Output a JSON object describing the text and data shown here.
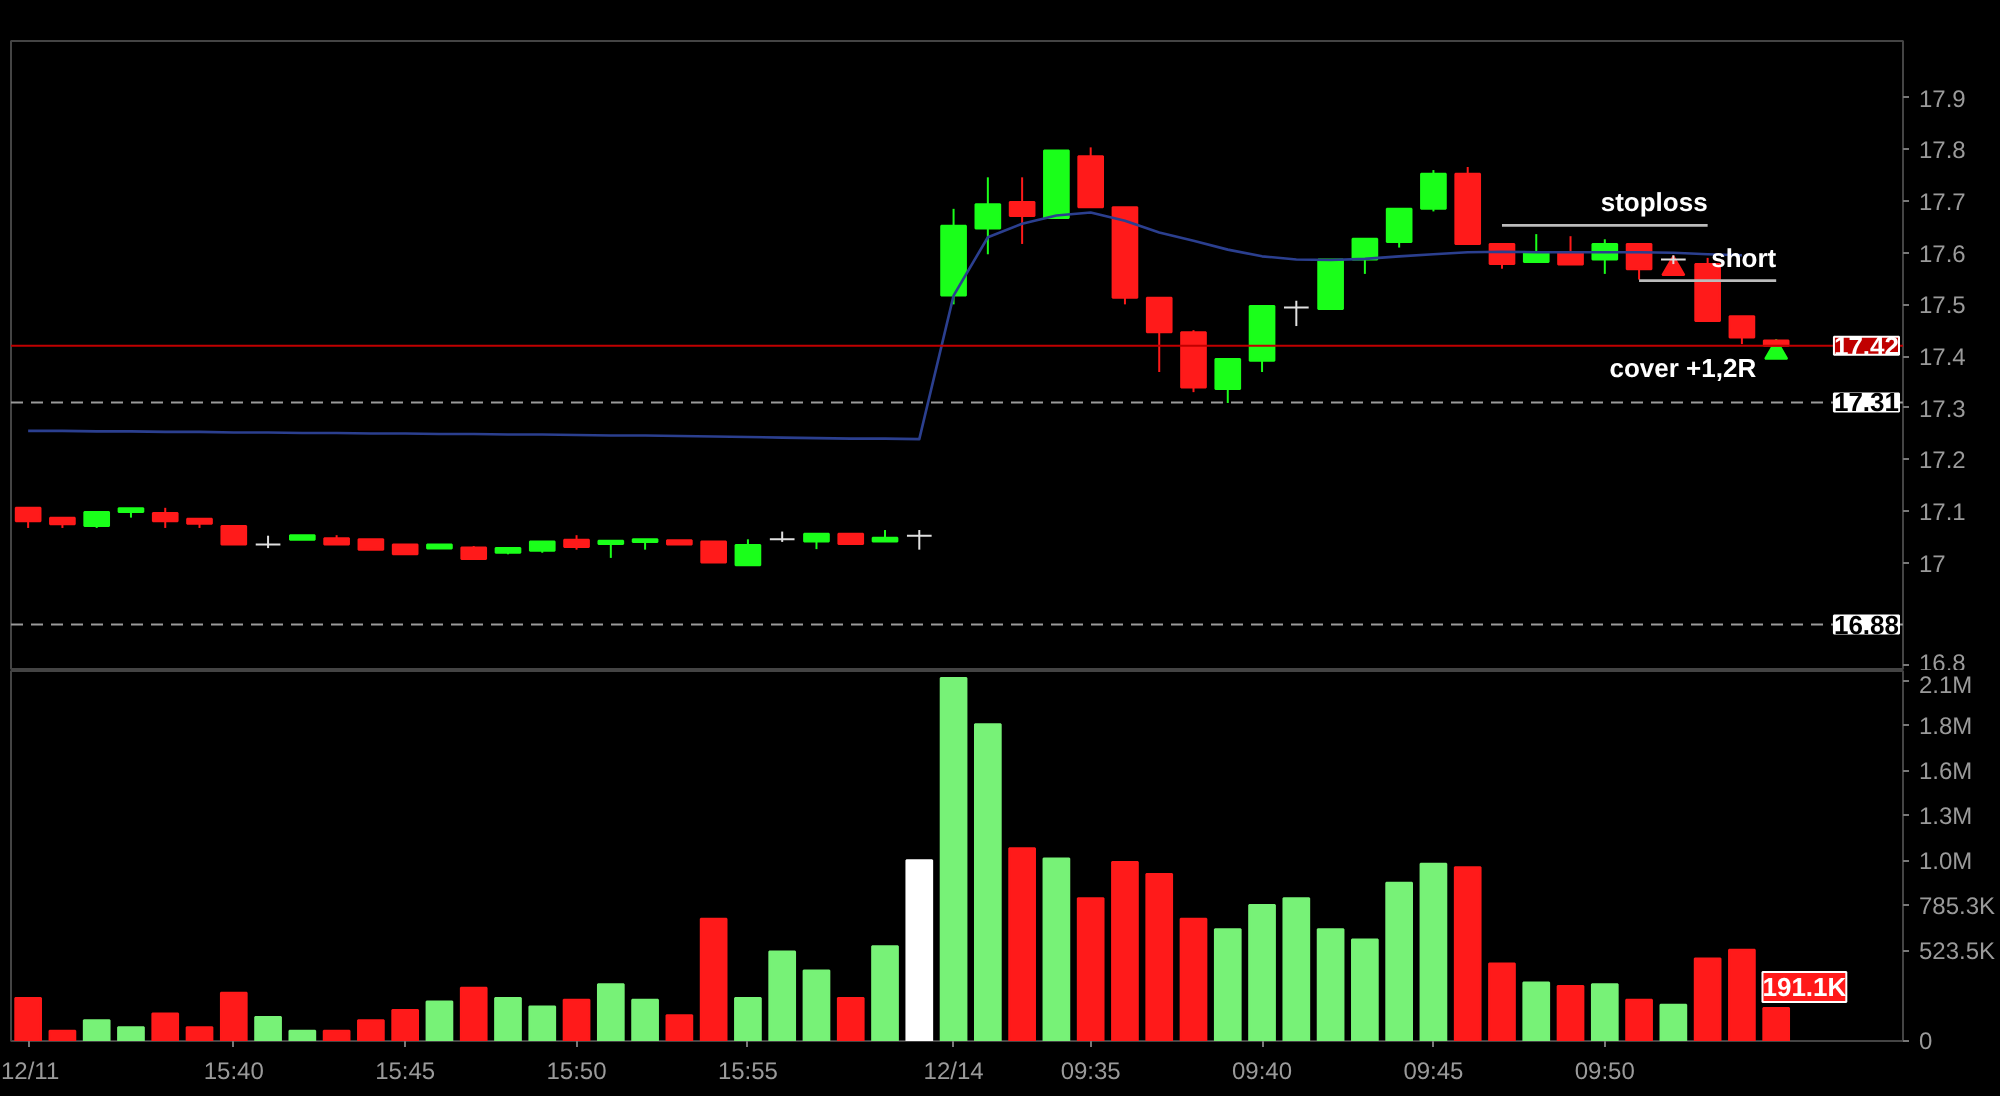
{
  "chart_data": [
    {
      "type": "candlestick",
      "ohlc": [
        [
          17.106,
          17.106,
          17.067,
          17.08
        ],
        [
          17.087,
          17.087,
          17.067,
          17.074
        ],
        [
          17.071,
          17.098,
          17.067,
          17.098
        ],
        [
          17.098,
          17.105,
          17.087,
          17.105
        ],
        [
          17.096,
          17.106,
          17.067,
          17.08
        ],
        [
          17.085,
          17.085,
          17.067,
          17.075
        ],
        [
          17.071,
          17.071,
          17.035,
          17.035
        ],
        [
          17.035,
          17.052,
          17.028,
          17.035
        ],
        [
          17.044,
          17.053,
          17.044,
          17.053
        ],
        [
          17.047,
          17.053,
          17.035,
          17.035
        ],
        [
          17.045,
          17.045,
          17.025,
          17.025
        ],
        [
          17.035,
          17.035,
          17.016,
          17.016
        ],
        [
          17.027,
          17.035,
          17.027,
          17.035
        ],
        [
          17.029,
          17.032,
          17.007,
          17.007
        ],
        [
          17.019,
          17.028,
          17.016,
          17.028
        ],
        [
          17.023,
          17.041,
          17.019,
          17.041
        ],
        [
          17.044,
          17.053,
          17.025,
          17.03
        ],
        [
          17.036,
          17.042,
          17.009,
          17.042
        ],
        [
          17.04,
          17.045,
          17.025,
          17.045
        ],
        [
          17.043,
          17.043,
          17.035,
          17.035
        ],
        [
          17.041,
          17.041,
          17.0,
          17.0
        ],
        [
          16.995,
          17.045,
          16.995,
          17.034
        ],
        [
          17.045,
          17.06,
          17.04,
          17.045
        ],
        [
          17.041,
          17.056,
          17.026,
          17.056
        ],
        [
          17.056,
          17.056,
          17.036,
          17.036
        ],
        [
          17.041,
          17.063,
          17.041,
          17.048
        ],
        [
          17.052,
          17.063,
          17.025,
          17.052
        ],
        [
          17.517,
          17.685,
          17.5,
          17.652
        ],
        [
          17.647,
          17.746,
          17.597,
          17.694
        ],
        [
          17.698,
          17.746,
          17.617,
          17.671
        ],
        [
          17.667,
          17.798,
          17.667,
          17.798
        ],
        [
          17.787,
          17.804,
          17.688,
          17.688
        ],
        [
          17.688,
          17.688,
          17.5,
          17.513
        ],
        [
          17.513,
          17.513,
          17.369,
          17.446
        ],
        [
          17.446,
          17.45,
          17.33,
          17.339
        ],
        [
          17.336,
          17.394,
          17.309,
          17.394
        ],
        [
          17.391,
          17.497,
          17.369,
          17.497
        ],
        [
          17.494,
          17.507,
          17.458,
          17.494
        ],
        [
          17.491,
          17.587,
          17.491,
          17.587
        ],
        [
          17.587,
          17.627,
          17.559,
          17.627
        ],
        [
          17.621,
          17.685,
          17.61,
          17.685
        ],
        [
          17.685,
          17.76,
          17.68,
          17.753
        ],
        [
          17.753,
          17.766,
          17.617,
          17.617
        ],
        [
          17.617,
          17.617,
          17.569,
          17.578
        ],
        [
          17.582,
          17.636,
          17.582,
          17.6
        ],
        [
          17.6,
          17.632,
          17.577,
          17.577
        ],
        [
          17.587,
          17.626,
          17.559,
          17.617
        ],
        [
          17.617,
          17.617,
          17.548,
          17.568
        ],
        [
          17.587,
          17.595,
          17.578,
          17.587
        ],
        [
          17.578,
          17.59,
          17.468,
          17.468
        ],
        [
          17.477,
          17.477,
          17.423,
          17.436
        ],
        [
          17.43,
          17.43,
          17.42,
          17.42
        ]
      ],
      "colors": [
        "#ff1a1a",
        "#ff1a1a",
        "#1aff1a",
        "#1aff1a",
        "#ff1a1a",
        "#ff1a1a",
        "#ff1a1a",
        "#e0e0e0",
        "#1aff1a",
        "#ff1a1a",
        "#ff1a1a",
        "#ff1a1a",
        "#1aff1a",
        "#ff1a1a",
        "#1aff1a",
        "#1aff1a",
        "#ff1a1a",
        "#1aff1a",
        "#1aff1a",
        "#ff1a1a",
        "#ff1a1a",
        "#1aff1a",
        "#e0e0e0",
        "#1aff1a",
        "#ff1a1a",
        "#1aff1a",
        "#e0e0e0",
        "#1aff1a",
        "#1aff1a",
        "#ff1a1a",
        "#1aff1a",
        "#ff1a1a",
        "#ff1a1a",
        "#ff1a1a",
        "#ff1a1a",
        "#1aff1a",
        "#1aff1a",
        "#e0e0e0",
        "#1aff1a",
        "#1aff1a",
        "#1aff1a",
        "#1aff1a",
        "#ff1a1a",
        "#ff1a1a",
        "#1aff1a",
        "#ff1a1a",
        "#1aff1a",
        "#ff1a1a",
        "#e0e0e0",
        "#ff1a1a",
        "#ff1a1a",
        "#ff1a1a"
      ],
      "series": [
        {
          "type": "line",
          "color": "#2b3f8f",
          "values": [
            17.255,
            17.255,
            17.254,
            17.254,
            17.253,
            17.253,
            17.252,
            17.252,
            17.251,
            17.251,
            17.25,
            17.25,
            17.249,
            17.249,
            17.248,
            17.248,
            17.247,
            17.246,
            17.246,
            17.245,
            17.244,
            17.243,
            17.242,
            17.241,
            17.24,
            17.24,
            17.239,
            17.517,
            17.63,
            17.656,
            17.672,
            17.678,
            17.662,
            17.639,
            17.623,
            17.606,
            17.593,
            17.587,
            17.586,
            17.588,
            17.593,
            17.597,
            17.601,
            17.602,
            17.601,
            17.601,
            17.601,
            17.601,
            17.6,
            17.597,
            17.595,
            null
          ]
        },
        {
          "type": "line",
          "name": "stoploss",
          "color": "#bbbbbb",
          "values": [
            null,
            null,
            null,
            null,
            null,
            null,
            null,
            null,
            null,
            null,
            null,
            null,
            null,
            null,
            null,
            null,
            null,
            null,
            null,
            null,
            null,
            null,
            null,
            null,
            null,
            null,
            null,
            null,
            null,
            null,
            null,
            null,
            null,
            null,
            null,
            null,
            null,
            null,
            null,
            null,
            null,
            null,
            null,
            17.653,
            17.653,
            17.653,
            17.653,
            17.653,
            17.653,
            17.653,
            null,
            null
          ]
        },
        {
          "type": "line",
          "name": "short",
          "color": "#bbbbbb",
          "values": [
            null,
            null,
            null,
            null,
            null,
            null,
            null,
            null,
            null,
            null,
            null,
            null,
            null,
            null,
            null,
            null,
            null,
            null,
            null,
            null,
            null,
            null,
            null,
            null,
            null,
            null,
            null,
            null,
            null,
            null,
            null,
            null,
            null,
            null,
            null,
            null,
            null,
            null,
            null,
            null,
            null,
            null,
            null,
            null,
            null,
            null,
            null,
            17.546,
            17.546,
            17.546,
            17.546,
            17.546
          ]
        },
        {
          "type": "scatter",
          "marker": "triangle",
          "color": "#ff1a1a",
          "values": [
            null,
            null,
            null,
            null,
            null,
            null,
            null,
            null,
            null,
            null,
            null,
            null,
            null,
            null,
            null,
            null,
            null,
            null,
            null,
            null,
            null,
            null,
            null,
            null,
            null,
            null,
            null,
            null,
            null,
            null,
            null,
            null,
            null,
            null,
            null,
            null,
            null,
            null,
            null,
            null,
            null,
            null,
            null,
            null,
            null,
            null,
            null,
            null,
            17.569,
            null,
            null,
            null
          ]
        },
        {
          "type": "scatter",
          "name": "cover +1,2R",
          "marker": "triangle",
          "color": "#1aff1a",
          "values": [
            null,
            null,
            null,
            null,
            null,
            null,
            null,
            null,
            null,
            null,
            null,
            null,
            null,
            null,
            null,
            null,
            null,
            null,
            null,
            null,
            null,
            null,
            null,
            null,
            null,
            null,
            null,
            null,
            null,
            null,
            null,
            null,
            null,
            null,
            null,
            null,
            null,
            null,
            null,
            null,
            null,
            null,
            null,
            null,
            null,
            null,
            null,
            null,
            null,
            null,
            null,
            17.407
          ]
        }
      ],
      "ylim": [
        16.79,
        18.01
      ],
      "yticks": [
        16.8,
        17,
        17.1,
        17.2,
        17.3,
        17.4,
        17.5,
        17.6,
        17.7,
        17.8,
        17.9
      ],
      "tick_labels": "y",
      "ref_lines": [
        {
          "axis": "y",
          "value": 17.42,
          "label": "17.42",
          "color": "#c00000",
          "line_style": "solid"
        },
        {
          "axis": "y",
          "value": 17.31,
          "label": "17.31",
          "color": "#9a9a9a",
          "line_style": "dashed"
        },
        {
          "axis": "y",
          "value": 16.88,
          "label": "16.88",
          "color": "#9a9a9a",
          "line_style": "dashed"
        }
      ]
    },
    {
      "type": "bar",
      "categories": [
        "12/11",
        null,
        null,
        null,
        null,
        null,
        "15:40",
        null,
        null,
        null,
        null,
        "15:45",
        null,
        null,
        null,
        null,
        "15:50",
        null,
        null,
        null,
        null,
        "15:55",
        null,
        null,
        null,
        null,
        null,
        "12/14",
        null,
        null,
        null,
        "09:35",
        null,
        null,
        null,
        null,
        "09:40",
        null,
        null,
        null,
        null,
        "09:45",
        null,
        null,
        null,
        null,
        "09:50",
        null,
        null,
        null,
        null,
        null
      ],
      "values": [
        250000,
        60000,
        120000,
        80000,
        160000,
        80000,
        280000,
        140000,
        60000,
        60000,
        120000,
        180000,
        230000,
        310000,
        250000,
        200000,
        240000,
        330000,
        240000,
        150000,
        710000,
        250000,
        520000,
        410000,
        250000,
        550000,
        1050000,
        2110000,
        1840000,
        1120000,
        1060000,
        830000,
        1040000,
        970000,
        710000,
        650000,
        790000,
        830000,
        650000,
        590000,
        920000,
        1030000,
        1010000,
        450000,
        340000,
        320000,
        330000,
        240000,
        210000,
        480000,
        530000,
        191100
      ],
      "colors": [
        "#ff1a1a",
        "#ff1a1a",
        "#77f277",
        "#77f277",
        "#ff1a1a",
        "#ff1a1a",
        "#ff1a1a",
        "#77f277",
        "#77f277",
        "#ff1a1a",
        "#ff1a1a",
        "#ff1a1a",
        "#77f277",
        "#ff1a1a",
        "#77f277",
        "#77f277",
        "#ff1a1a",
        "#77f277",
        "#77f277",
        "#ff1a1a",
        "#ff1a1a",
        "#77f277",
        "#77f277",
        "#77f277",
        "#ff1a1a",
        "#77f277",
        "#ffffff",
        "#77f277",
        "#77f277",
        "#ff1a1a",
        "#77f277",
        "#ff1a1a",
        "#ff1a1a",
        "#ff1a1a",
        "#ff1a1a",
        "#77f277",
        "#77f277",
        "#77f277",
        "#77f277",
        "#77f277",
        "#77f277",
        "#77f277",
        "#ff1a1a",
        "#ff1a1a",
        "#77f277",
        "#ff1a1a",
        "#77f277",
        "#ff1a1a",
        "#77f277",
        "#ff1a1a",
        "#ff1a1a",
        "#ff1a1a"
      ],
      "value_labels": [
        null,
        null,
        null,
        null,
        null,
        null,
        null,
        null,
        null,
        null,
        null,
        null,
        null,
        null,
        null,
        null,
        null,
        null,
        null,
        null,
        null,
        null,
        null,
        null,
        null,
        null,
        null,
        null,
        null,
        null,
        null,
        null,
        null,
        null,
        null,
        null,
        null,
        null,
        null,
        null,
        null,
        null,
        null,
        null,
        null,
        null,
        null,
        null,
        null,
        null,
        null,
        "191.1K"
      ],
      "ylim": [
        0,
        2150000
      ],
      "yticks": [
        0,
        {
          "value": 523500,
          "label": "523.5K"
        },
        {
          "value": 785300,
          "label": "785.3K"
        },
        {
          "value": 1047000,
          "label": "1.0M"
        },
        {
          "value": 1308900,
          "label": "1.3M"
        },
        {
          "value": 1570700,
          "label": "1.6M"
        },
        {
          "value": 1832500,
          "label": "1.8M"
        },
        {
          "value": 2094300,
          "label": "2.1M"
        }
      ]
    }
  ]
}
